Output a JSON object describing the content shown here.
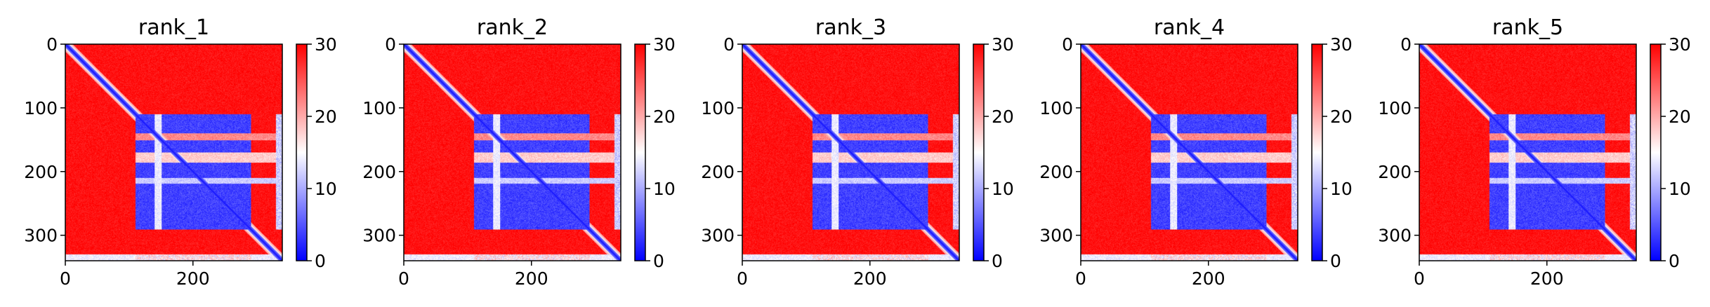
{
  "chart_data": {
    "type": "heatmap",
    "description_units": "Predicted aligned error style distance matrix per model rank",
    "colormap": {
      "name": "bwr",
      "low_color": "#0000ff",
      "mid_color": "#ffffff",
      "high_color": "#ff0000",
      "vmin": 0,
      "vmax": 30
    },
    "matrix_size": 340,
    "x_ticks": [
      "0",
      "200"
    ],
    "x_tick_values": [
      0,
      200
    ],
    "y_ticks": [
      "0",
      "100",
      "200",
      "300"
    ],
    "y_tick_values": [
      0,
      100,
      200,
      300
    ],
    "colorbar_ticks": [
      "0",
      "10",
      "20",
      "30"
    ],
    "colorbar_tick_values": [
      0,
      10,
      20,
      30
    ],
    "xlim": [
      0,
      340
    ],
    "ylim": [
      340,
      0
    ],
    "grid": false,
    "structure": {
      "background_value": 29,
      "diagonal_value": 1,
      "diagonal_width": 5,
      "domain_block": {
        "start": 110,
        "end": 290,
        "value": 3
      },
      "stripe_rows": [
        {
          "from": 140,
          "to": 150,
          "value": 22
        },
        {
          "from": 170,
          "to": 185,
          "value": 18
        },
        {
          "from": 210,
          "to": 218,
          "value": 12
        },
        {
          "from": 330,
          "to": 340,
          "value": 14
        }
      ],
      "stripe_cols": [
        {
          "from": 140,
          "to": 150,
          "value": 14
        },
        {
          "from": 330,
          "to": 340,
          "value": 12
        }
      ]
    },
    "panels": [
      {
        "title": "rank_1"
      },
      {
        "title": "rank_2"
      },
      {
        "title": "rank_3"
      },
      {
        "title": "rank_4"
      },
      {
        "title": "rank_5"
      }
    ]
  }
}
